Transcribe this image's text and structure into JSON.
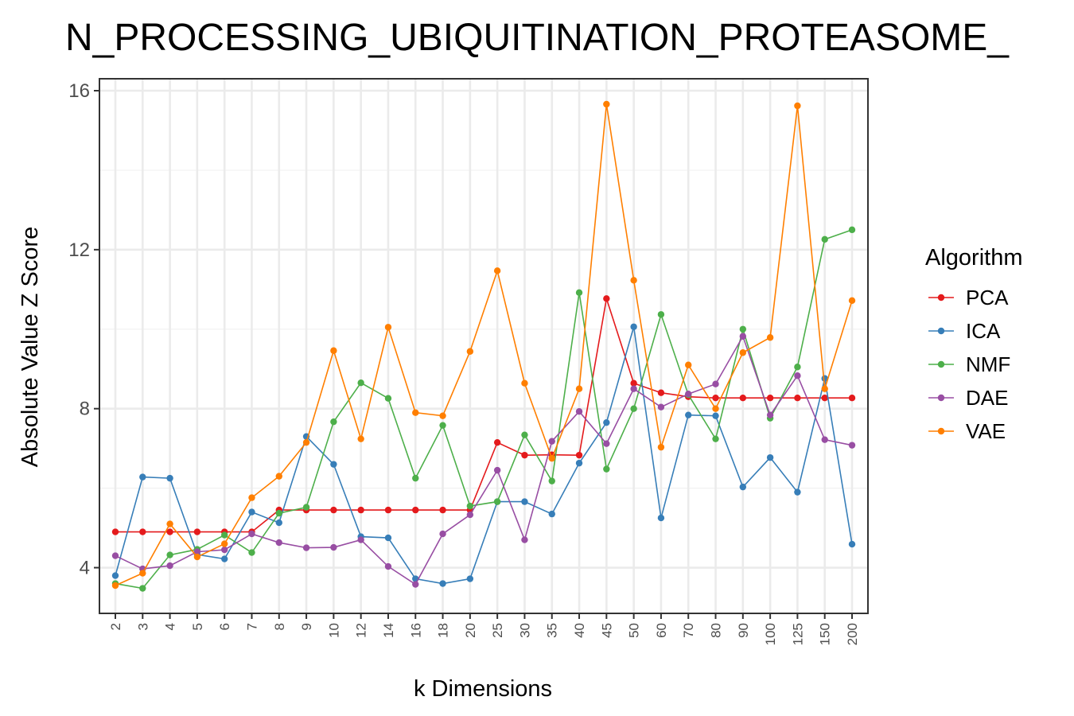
{
  "chart_data": {
    "type": "line",
    "title": "N_PROCESSING_UBIQUITINATION_PROTEASOME_",
    "xlabel": "k Dimensions",
    "ylabel": "Absolute Value Z Score",
    "categories": [
      "2",
      "3",
      "4",
      "5",
      "6",
      "7",
      "8",
      "9",
      "10",
      "12",
      "14",
      "16",
      "18",
      "20",
      "25",
      "30",
      "35",
      "40",
      "45",
      "50",
      "60",
      "70",
      "80",
      "90",
      "100",
      "125",
      "150",
      "200"
    ],
    "ylim": [
      2.85,
      16.3
    ],
    "yticks": [
      "4",
      "8",
      "12",
      "16"
    ],
    "grid": true,
    "legend": {
      "title": "Algorithm",
      "position": "right"
    },
    "series": [
      {
        "name": "PCA",
        "color": "#e41a1c",
        "values": [
          4.9,
          4.9,
          4.9,
          4.9,
          4.9,
          4.9,
          5.45,
          5.45,
          5.45,
          5.45,
          5.45,
          5.45,
          5.45,
          5.45,
          7.15,
          6.83,
          6.84,
          6.83,
          10.77,
          8.64,
          8.4,
          8.3,
          8.27,
          8.27,
          8.27,
          8.27,
          8.27,
          8.27
        ]
      },
      {
        "name": "ICA",
        "color": "#377eb8",
        "values": [
          3.8,
          6.28,
          6.25,
          4.33,
          4.22,
          5.4,
          5.13,
          7.3,
          6.6,
          4.78,
          4.75,
          3.72,
          3.6,
          3.72,
          5.66,
          5.66,
          5.35,
          6.63,
          7.65,
          10.06,
          5.25,
          7.84,
          7.82,
          6.03,
          6.77,
          5.9,
          8.76,
          4.59
        ]
      },
      {
        "name": "NMF",
        "color": "#4daf4a",
        "values": [
          3.6,
          3.48,
          4.32,
          4.46,
          4.82,
          4.38,
          5.37,
          5.52,
          7.67,
          8.65,
          8.26,
          6.25,
          7.58,
          5.55,
          5.66,
          7.34,
          6.18,
          10.92,
          6.48,
          8.0,
          10.37,
          8.35,
          7.24,
          10.0,
          7.76,
          9.05,
          12.26,
          12.5
        ]
      },
      {
        "name": "DAE",
        "color": "#984ea3",
        "values": [
          4.3,
          3.97,
          4.05,
          4.4,
          4.45,
          4.85,
          4.63,
          4.5,
          4.51,
          4.7,
          4.03,
          3.58,
          4.85,
          5.33,
          6.45,
          4.7,
          7.18,
          7.93,
          7.12,
          8.5,
          8.04,
          8.37,
          8.62,
          9.82,
          7.84,
          8.83,
          7.22,
          7.08
        ]
      },
      {
        "name": "VAE",
        "color": "#ff7f00",
        "values": [
          3.55,
          3.86,
          5.1,
          4.27,
          4.6,
          5.76,
          6.3,
          7.15,
          9.46,
          7.24,
          10.05,
          7.9,
          7.82,
          9.44,
          11.47,
          8.64,
          6.75,
          8.5,
          15.66,
          11.23,
          7.03,
          9.1,
          8.0,
          9.41,
          9.79,
          15.62,
          8.5,
          10.72
        ]
      }
    ]
  }
}
